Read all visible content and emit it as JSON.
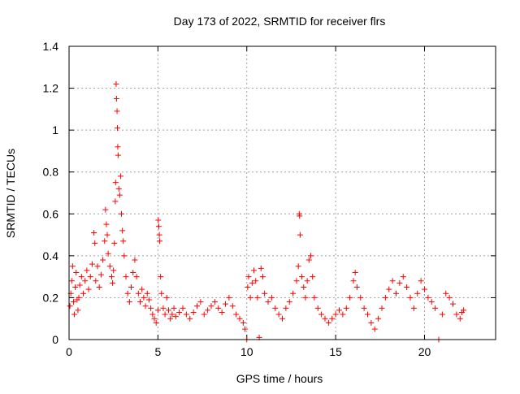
{
  "chart_data": {
    "type": "scatter",
    "title": "Day 173 of 2022, SRMTID for receiver flrs",
    "xlabel": "GPS time / hours",
    "ylabel": "SRMTID / TECUs",
    "xlim": [
      0,
      24
    ],
    "ylim": [
      0,
      1.4
    ],
    "xticks": [
      0,
      5,
      10,
      15,
      20
    ],
    "yticks": [
      0,
      0.2,
      0.4,
      0.6,
      0.8,
      1,
      1.2,
      1.4
    ],
    "grid": true,
    "marker": "+",
    "color": "#ff0000",
    "series": [
      {
        "name": "SRMTID",
        "points": [
          [
            0.05,
            0.16
          ],
          [
            0.1,
            0.22
          ],
          [
            0.15,
            0.28
          ],
          [
            0.2,
            0.35
          ],
          [
            0.25,
            0.18
          ],
          [
            0.3,
            0.12
          ],
          [
            0.35,
            0.25
          ],
          [
            0.4,
            0.32
          ],
          [
            0.45,
            0.19
          ],
          [
            0.5,
            0.14
          ],
          [
            0.55,
            0.2
          ],
          [
            0.6,
            0.26
          ],
          [
            0.7,
            0.3
          ],
          [
            0.8,
            0.22
          ],
          [
            0.9,
            0.28
          ],
          [
            1.0,
            0.33
          ],
          [
            1.1,
            0.24
          ],
          [
            1.2,
            0.3
          ],
          [
            1.3,
            0.36
          ],
          [
            1.4,
            0.51
          ],
          [
            1.45,
            0.46
          ],
          [
            1.5,
            0.28
          ],
          [
            1.6,
            0.35
          ],
          [
            1.7,
            0.25
          ],
          [
            1.8,
            0.31
          ],
          [
            1.9,
            0.38
          ],
          [
            2.0,
            0.47
          ],
          [
            2.05,
            0.62
          ],
          [
            2.1,
            0.55
          ],
          [
            2.15,
            0.5
          ],
          [
            2.2,
            0.41
          ],
          [
            2.3,
            0.35
          ],
          [
            2.4,
            0.3
          ],
          [
            2.45,
            0.27
          ],
          [
            2.5,
            0.33
          ],
          [
            2.55,
            0.46
          ],
          [
            2.6,
            0.66
          ],
          [
            2.62,
            0.75
          ],
          [
            2.65,
            1.22
          ],
          [
            2.67,
            1.15
          ],
          [
            2.7,
            1.09
          ],
          [
            2.72,
            1.01
          ],
          [
            2.74,
            0.92
          ],
          [
            2.76,
            0.88
          ],
          [
            2.8,
            0.72
          ],
          [
            2.85,
            0.69
          ],
          [
            2.9,
            0.78
          ],
          [
            2.95,
            0.6
          ],
          [
            3.0,
            0.52
          ],
          [
            3.05,
            0.47
          ],
          [
            3.1,
            0.4
          ],
          [
            3.2,
            0.3
          ],
          [
            3.3,
            0.22
          ],
          [
            3.4,
            0.18
          ],
          [
            3.5,
            0.25
          ],
          [
            3.6,
            0.32
          ],
          [
            3.7,
            0.38
          ],
          [
            3.8,
            0.3
          ],
          [
            3.9,
            0.22
          ],
          [
            4.0,
            0.18
          ],
          [
            4.1,
            0.24
          ],
          [
            4.2,
            0.2
          ],
          [
            4.3,
            0.16
          ],
          [
            4.4,
            0.22
          ],
          [
            4.5,
            0.19
          ],
          [
            4.6,
            0.15
          ],
          [
            4.7,
            0.12
          ],
          [
            4.8,
            0.1
          ],
          [
            4.9,
            0.08
          ],
          [
            5.0,
            0.14
          ],
          [
            5.02,
            0.57
          ],
          [
            5.05,
            0.54
          ],
          [
            5.08,
            0.5
          ],
          [
            5.1,
            0.47
          ],
          [
            5.15,
            0.3
          ],
          [
            5.2,
            0.22
          ],
          [
            5.3,
            0.15
          ],
          [
            5.4,
            0.12
          ],
          [
            5.5,
            0.2
          ],
          [
            5.6,
            0.14
          ],
          [
            5.7,
            0.1
          ],
          [
            5.8,
            0.12
          ],
          [
            5.9,
            0.15
          ],
          [
            6.0,
            0.11
          ],
          [
            6.2,
            0.13
          ],
          [
            6.4,
            0.15
          ],
          [
            6.6,
            0.12
          ],
          [
            6.8,
            0.1
          ],
          [
            7.0,
            0.13
          ],
          [
            7.2,
            0.16
          ],
          [
            7.4,
            0.18
          ],
          [
            7.6,
            0.12
          ],
          [
            7.8,
            0.14
          ],
          [
            8.0,
            0.16
          ],
          [
            8.2,
            0.18
          ],
          [
            8.4,
            0.15
          ],
          [
            8.6,
            0.13
          ],
          [
            8.8,
            0.17
          ],
          [
            9.0,
            0.2
          ],
          [
            9.2,
            0.16
          ],
          [
            9.4,
            0.12
          ],
          [
            9.6,
            0.1
          ],
          [
            9.8,
            0.08
          ],
          [
            9.9,
            0.05
          ],
          [
            10.0,
            0.0
          ],
          [
            10.05,
            0.25
          ],
          [
            10.1,
            0.3
          ],
          [
            10.2,
            0.2
          ],
          [
            10.3,
            0.27
          ],
          [
            10.4,
            0.33
          ],
          [
            10.5,
            0.28
          ],
          [
            10.6,
            0.2
          ],
          [
            10.7,
            0.01
          ],
          [
            10.8,
            0.34
          ],
          [
            10.9,
            0.3
          ],
          [
            11.0,
            0.22
          ],
          [
            11.2,
            0.18
          ],
          [
            11.4,
            0.2
          ],
          [
            11.6,
            0.15
          ],
          [
            11.8,
            0.12
          ],
          [
            12.0,
            0.1
          ],
          [
            12.2,
            0.15
          ],
          [
            12.4,
            0.18
          ],
          [
            12.6,
            0.22
          ],
          [
            12.8,
            0.28
          ],
          [
            12.9,
            0.35
          ],
          [
            12.95,
            0.6
          ],
          [
            12.97,
            0.59
          ],
          [
            13.0,
            0.5
          ],
          [
            13.1,
            0.3
          ],
          [
            13.2,
            0.25
          ],
          [
            13.3,
            0.2
          ],
          [
            13.4,
            0.28
          ],
          [
            13.5,
            0.38
          ],
          [
            13.6,
            0.4
          ],
          [
            13.7,
            0.3
          ],
          [
            13.8,
            0.2
          ],
          [
            14.0,
            0.15
          ],
          [
            14.2,
            0.12
          ],
          [
            14.4,
            0.1
          ],
          [
            14.6,
            0.08
          ],
          [
            14.8,
            0.1
          ],
          [
            15.0,
            0.12
          ],
          [
            15.2,
            0.14
          ],
          [
            15.4,
            0.12
          ],
          [
            15.6,
            0.15
          ],
          [
            15.8,
            0.2
          ],
          [
            16.0,
            0.28
          ],
          [
            16.1,
            0.32
          ],
          [
            16.2,
            0.25
          ],
          [
            16.4,
            0.2
          ],
          [
            16.6,
            0.15
          ],
          [
            16.8,
            0.12
          ],
          [
            17.0,
            0.08
          ],
          [
            17.2,
            0.05
          ],
          [
            17.4,
            0.1
          ],
          [
            17.6,
            0.15
          ],
          [
            17.8,
            0.2
          ],
          [
            18.0,
            0.24
          ],
          [
            18.2,
            0.28
          ],
          [
            18.4,
            0.22
          ],
          [
            18.6,
            0.27
          ],
          [
            18.8,
            0.3
          ],
          [
            19.0,
            0.25
          ],
          [
            19.2,
            0.2
          ],
          [
            19.4,
            0.15
          ],
          [
            19.6,
            0.22
          ],
          [
            19.8,
            0.28
          ],
          [
            20.0,
            0.24
          ],
          [
            20.2,
            0.2
          ],
          [
            20.4,
            0.18
          ],
          [
            20.6,
            0.15
          ],
          [
            20.8,
            0.0
          ],
          [
            21.0,
            0.12
          ],
          [
            21.2,
            0.22
          ],
          [
            21.4,
            0.2
          ],
          [
            21.6,
            0.17
          ],
          [
            21.8,
            0.12
          ],
          [
            22.0,
            0.1
          ],
          [
            22.1,
            0.13
          ],
          [
            22.2,
            0.14
          ]
        ]
      }
    ]
  }
}
